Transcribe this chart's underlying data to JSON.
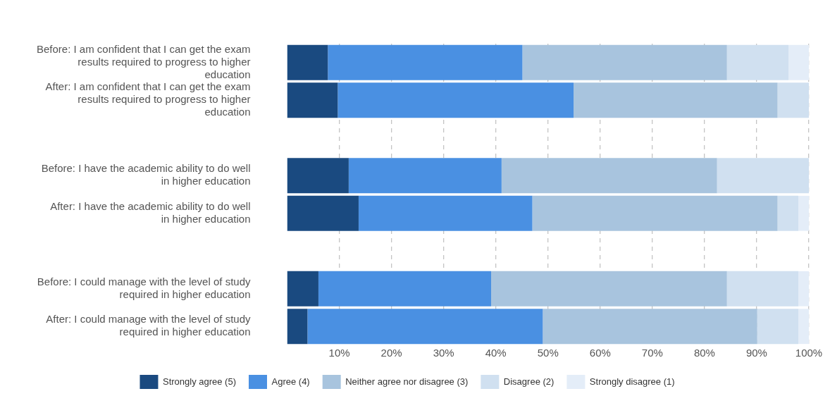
{
  "chart_data": {
    "type": "bar",
    "orientation": "horizontal",
    "stacked": true,
    "categories": [
      "Before: I am confident that I can get the exam results required to progress to higher education",
      "After: I am confident that I can get the exam results required to progress to higher education",
      null,
      "Before: I have the academic ability to do well in higher education",
      "After: I have the academic ability to do well in higher education",
      null,
      "Before: I could manage with the level of study required in higher education",
      "After: I could manage with the level of study required in higher education"
    ],
    "series": [
      {
        "name": "Strongly agree (5)",
        "color": "#1a4a80",
        "values": [
          7.8,
          9.7,
          null,
          11.8,
          13.7,
          null,
          6.0,
          3.9
        ]
      },
      {
        "name": "Agree (4)",
        "color": "#4a90e2",
        "values": [
          37.3,
          45.2,
          null,
          29.3,
          33.3,
          null,
          33.1,
          45.1
        ]
      },
      {
        "name": "Neither agree nor disagree (3)",
        "color": "#a8c4de",
        "values": [
          39.2,
          39.1,
          null,
          41.3,
          47.0,
          null,
          45.2,
          41.1
        ]
      },
      {
        "name": "Disagree (2)",
        "color": "#d0e0f0",
        "values": [
          11.8,
          6.0,
          null,
          17.6,
          4.0,
          null,
          13.7,
          7.9
        ]
      },
      {
        "name": "Strongly disagree (1)",
        "color": "#e4edf8",
        "values": [
          3.9,
          0,
          null,
          0,
          2.0,
          null,
          2.0,
          2.0
        ]
      }
    ],
    "xlim": [
      0,
      100
    ],
    "xticks": [
      {
        "value": 10,
        "label": "10%"
      },
      {
        "value": 20,
        "label": "20%"
      },
      {
        "value": 30,
        "label": "30%"
      },
      {
        "value": 40,
        "label": "40%"
      },
      {
        "value": 50,
        "label": "50%"
      },
      {
        "value": 60,
        "label": "60%"
      },
      {
        "value": 70,
        "label": "70%"
      },
      {
        "value": 80,
        "label": "80%"
      },
      {
        "value": 90,
        "label": "90%"
      },
      {
        "value": 100,
        "label": "100%"
      }
    ],
    "grid": "x",
    "legend": "bottom"
  }
}
